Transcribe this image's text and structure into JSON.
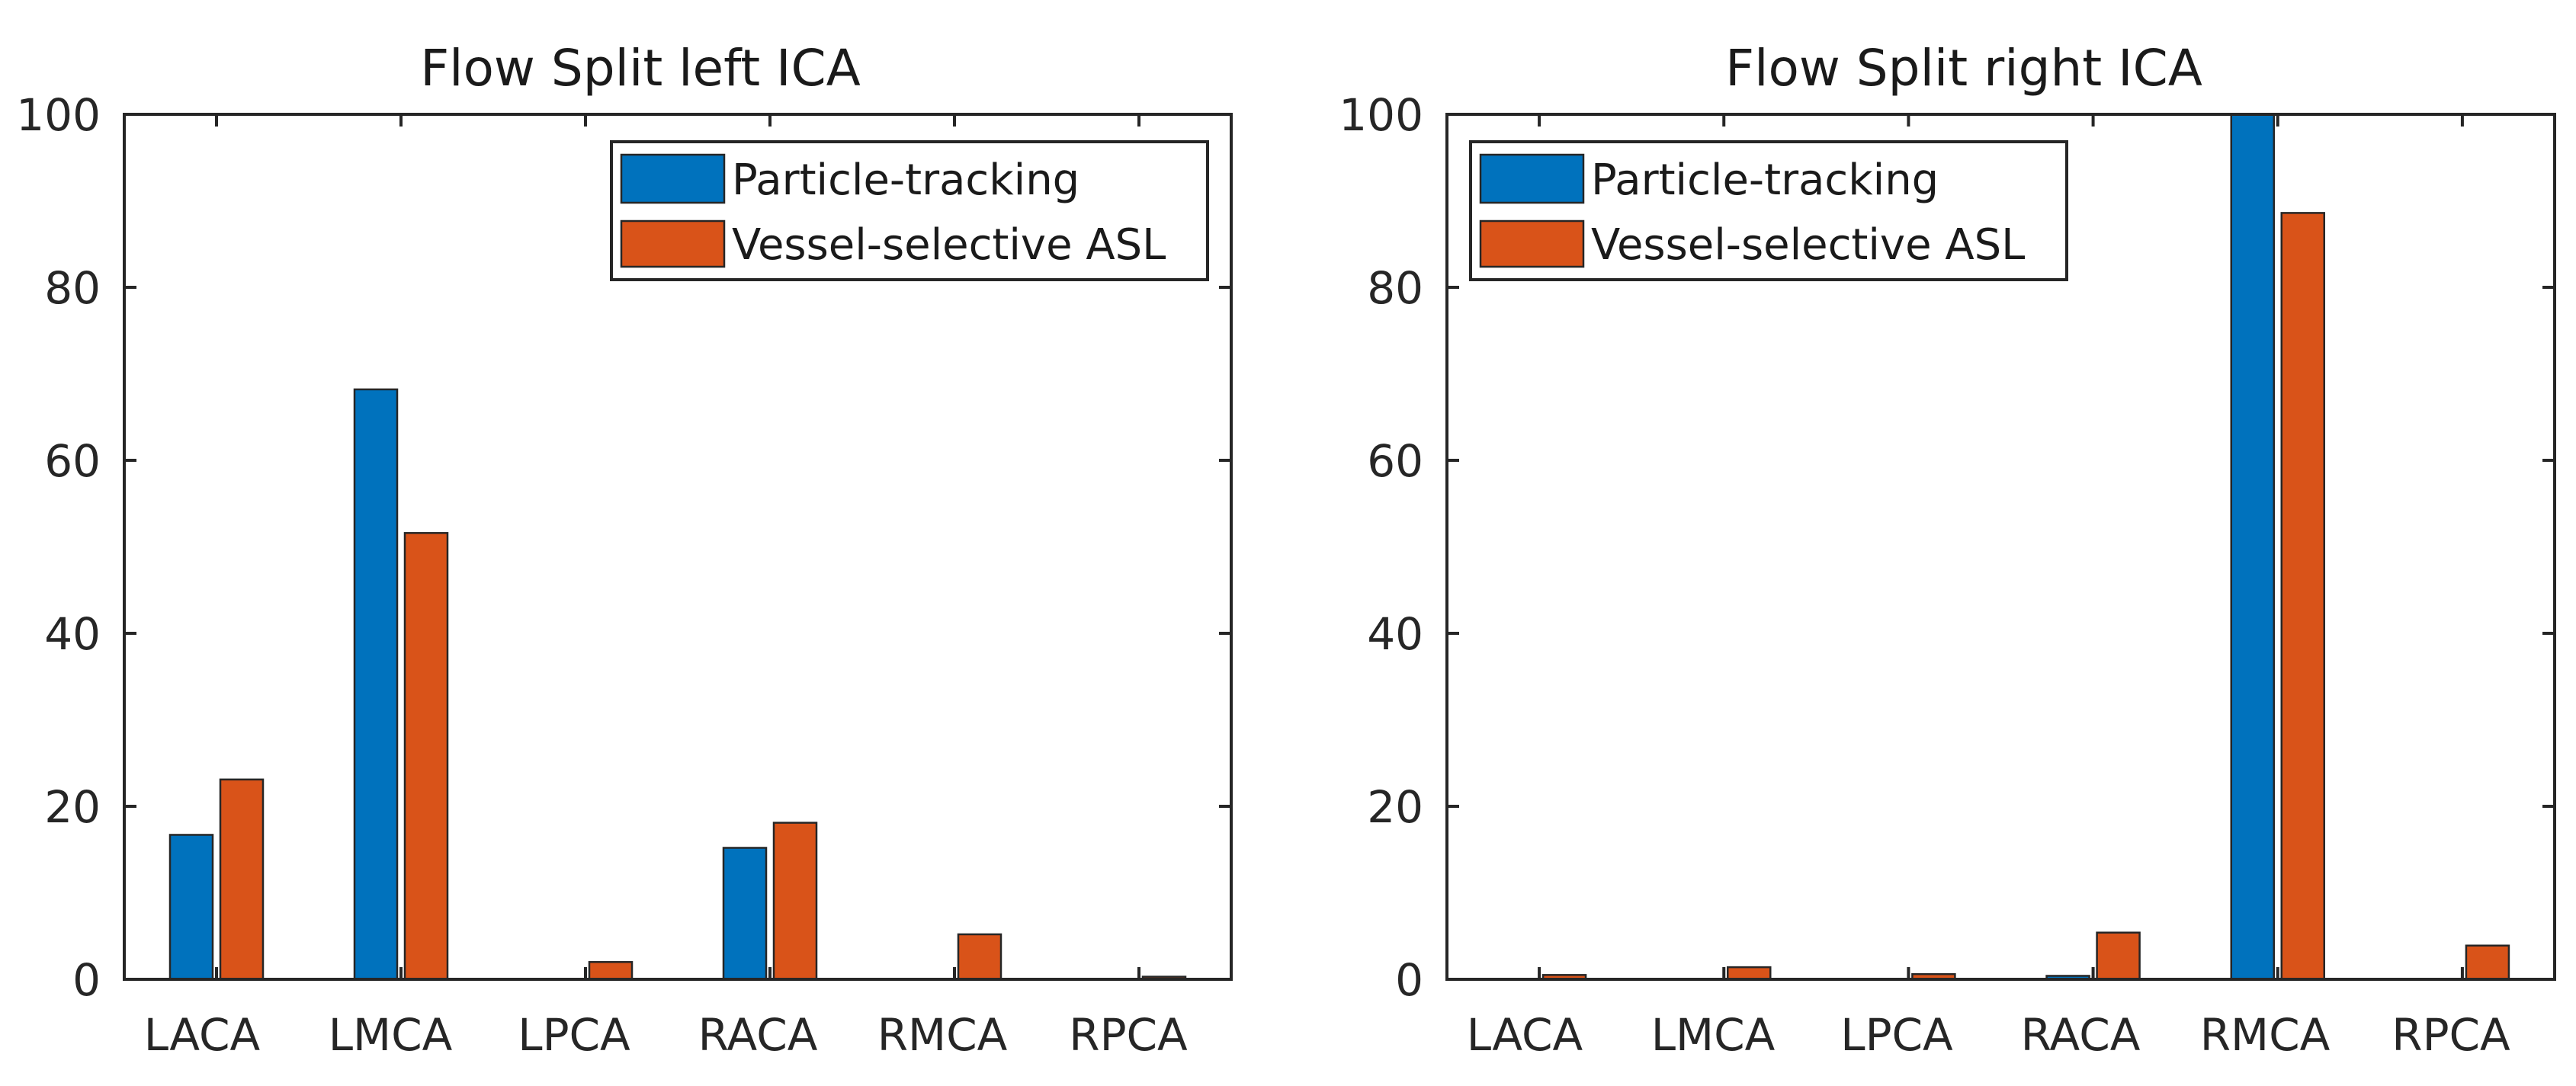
{
  "colors": {
    "particle": "#0072BD",
    "vessel": "#D95319"
  },
  "chart_data": [
    {
      "type": "bar",
      "title": "Flow Split left ICA",
      "categories": [
        "LACA",
        "LMCA",
        "LPCA",
        "RACA",
        "RMCA",
        "RPCA"
      ],
      "series": [
        {
          "name": "Particle-tracking",
          "values": [
            16.7,
            68.2,
            0,
            15.2,
            0,
            0
          ]
        },
        {
          "name": "Vessel-selective ASL",
          "values": [
            23.1,
            51.6,
            2.0,
            18.1,
            5.2,
            0.3
          ]
        }
      ],
      "yticks": [
        "0",
        "20",
        "40",
        "60",
        "80",
        "100"
      ],
      "ylim": [
        0,
        100
      ],
      "xlabel": "",
      "ylabel": "",
      "legend_position": "top-right"
    },
    {
      "type": "bar",
      "title": "Flow Split right ICA",
      "categories": [
        "LACA",
        "LMCA",
        "LPCA",
        "RACA",
        "RMCA",
        "RPCA"
      ],
      "series": [
        {
          "name": "Particle-tracking",
          "values": [
            0,
            0,
            0,
            0.4,
            100,
            0
          ]
        },
        {
          "name": "Vessel-selective ASL",
          "values": [
            0.5,
            1.4,
            0.6,
            5.4,
            88.6,
            3.9
          ]
        }
      ],
      "yticks": [
        "0",
        "20",
        "40",
        "60",
        "80",
        "100"
      ],
      "ylim": [
        0,
        100
      ],
      "xlabel": "",
      "ylabel": "",
      "legend_position": "top-left"
    }
  ]
}
